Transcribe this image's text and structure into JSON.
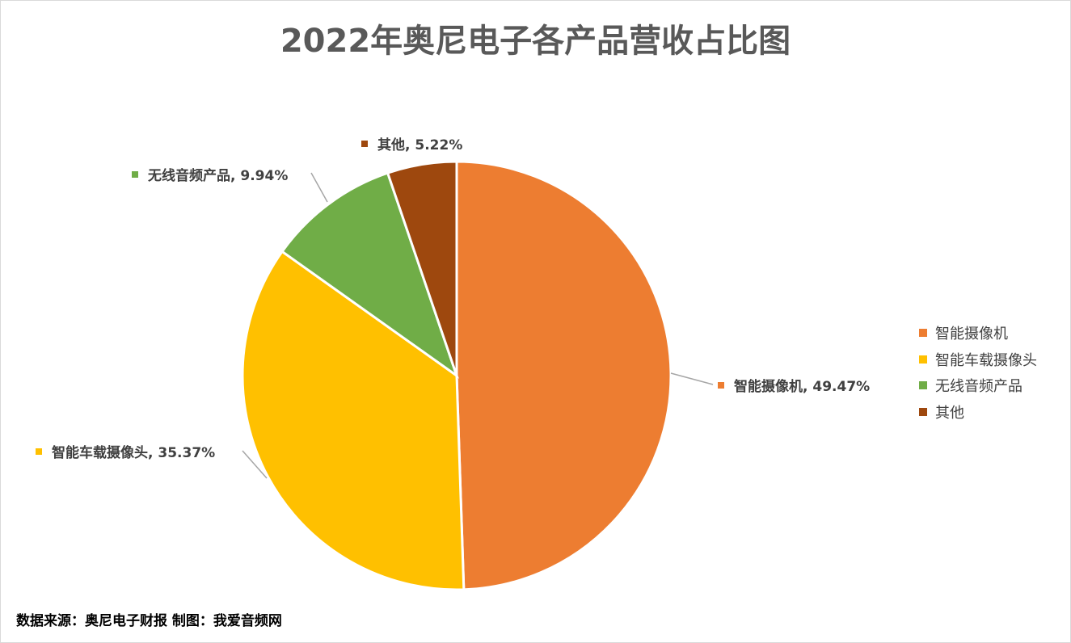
{
  "chart_data": {
    "type": "pie",
    "title": "2022年奥尼电子各产品营收占比图",
    "categories": [
      "智能摄像机",
      "智能车载摄像头",
      "无线音频产品",
      "其他"
    ],
    "values": [
      49.47,
      35.37,
      9.94,
      5.22
    ],
    "unit": "%",
    "data_labels": [
      "智能摄像机, 49.47%",
      "智能车载摄像头, 35.37%",
      "无线音频产品, 9.94%",
      "其他, 5.22%"
    ],
    "colors": [
      "#ED7D31",
      "#FFC000",
      "#70AD47",
      "#9E480E"
    ],
    "start_angle": "top",
    "direction": "clockwise",
    "legend_placement": "right"
  },
  "footer": "数据来源：奥尼电子财报  制图：我爱音频网"
}
